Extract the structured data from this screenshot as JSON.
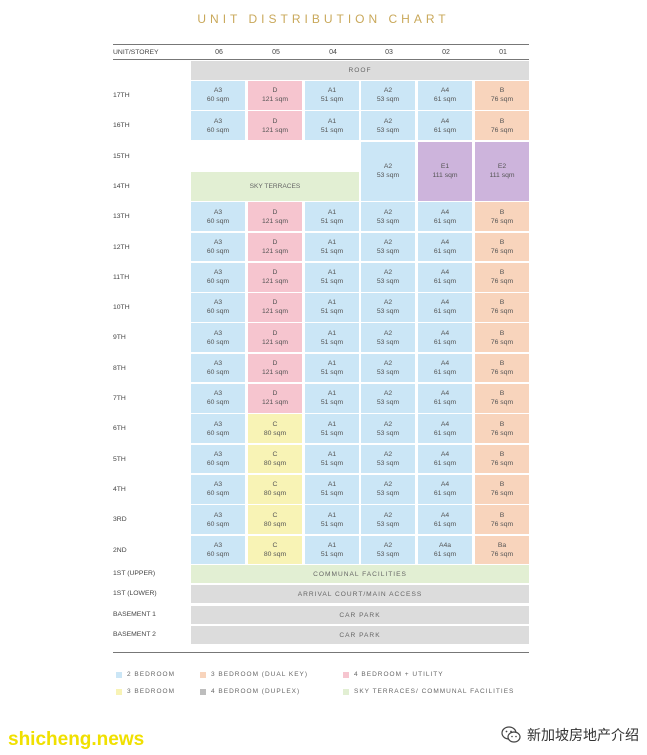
{
  "title": "UNIT DISTRIBUTION CHART",
  "header": {
    "corner": "UNIT/STOREY",
    "columns": [
      "06",
      "05",
      "04",
      "03",
      "02",
      "01"
    ]
  },
  "roof": "ROOF",
  "sky_terraces": "SKY TERRACES",
  "floors": [
    {
      "label": "17TH",
      "units": [
        [
          "A3",
          "60 sqm"
        ],
        [
          "D",
          "121 sqm"
        ],
        [
          "A1",
          "51 sqm"
        ],
        [
          "A2",
          "53 sqm"
        ],
        [
          "A4",
          "61 sqm"
        ],
        [
          "B",
          "76 sqm"
        ]
      ]
    },
    {
      "label": "16TH",
      "units": [
        [
          "A3",
          "60 sqm"
        ],
        [
          "D",
          "121 sqm"
        ],
        [
          "A1",
          "51 sqm"
        ],
        [
          "A2",
          "53 sqm"
        ],
        [
          "A4",
          "61 sqm"
        ],
        [
          "B",
          "76 sqm"
        ]
      ]
    },
    {
      "label": "15TH"
    },
    {
      "label": "14TH"
    },
    {
      "label": "13TH",
      "units": [
        [
          "A3",
          "60 sqm"
        ],
        [
          "D",
          "121 sqm"
        ],
        [
          "A1",
          "51 sqm"
        ],
        [
          "A2",
          "53 sqm"
        ],
        [
          "A4",
          "61 sqm"
        ],
        [
          "B",
          "76 sqm"
        ]
      ]
    },
    {
      "label": "12TH",
      "units": [
        [
          "A3",
          "60 sqm"
        ],
        [
          "D",
          "121 sqm"
        ],
        [
          "A1",
          "51 sqm"
        ],
        [
          "A2",
          "53 sqm"
        ],
        [
          "A4",
          "61 sqm"
        ],
        [
          "B",
          "76 sqm"
        ]
      ]
    },
    {
      "label": "11TH",
      "units": [
        [
          "A3",
          "60 sqm"
        ],
        [
          "D",
          "121 sqm"
        ],
        [
          "A1",
          "51 sqm"
        ],
        [
          "A2",
          "53 sqm"
        ],
        [
          "A4",
          "61 sqm"
        ],
        [
          "B",
          "76 sqm"
        ]
      ]
    },
    {
      "label": "10TH",
      "units": [
        [
          "A3",
          "60 sqm"
        ],
        [
          "D",
          "121 sqm"
        ],
        [
          "A1",
          "51 sqm"
        ],
        [
          "A2",
          "53 sqm"
        ],
        [
          "A4",
          "61 sqm"
        ],
        [
          "B",
          "76 sqm"
        ]
      ]
    },
    {
      "label": "9TH",
      "units": [
        [
          "A3",
          "60 sqm"
        ],
        [
          "D",
          "121 sqm"
        ],
        [
          "A1",
          "51 sqm"
        ],
        [
          "A2",
          "53 sqm"
        ],
        [
          "A4",
          "61 sqm"
        ],
        [
          "B",
          "76 sqm"
        ]
      ]
    },
    {
      "label": "8TH",
      "units": [
        [
          "A3",
          "60 sqm"
        ],
        [
          "D",
          "121 sqm"
        ],
        [
          "A1",
          "51 sqm"
        ],
        [
          "A2",
          "53 sqm"
        ],
        [
          "A4",
          "61 sqm"
        ],
        [
          "B",
          "76 sqm"
        ]
      ]
    },
    {
      "label": "7TH",
      "units": [
        [
          "A3",
          "60 sqm"
        ],
        [
          "D",
          "121 sqm"
        ],
        [
          "A1",
          "51 sqm"
        ],
        [
          "A2",
          "53 sqm"
        ],
        [
          "A4",
          "61 sqm"
        ],
        [
          "B",
          "76 sqm"
        ]
      ]
    },
    {
      "label": "6TH",
      "units": [
        [
          "A3",
          "60 sqm"
        ],
        [
          "C",
          "80 sqm"
        ],
        [
          "A1",
          "51 sqm"
        ],
        [
          "A2",
          "53 sqm"
        ],
        [
          "A4",
          "61 sqm"
        ],
        [
          "B",
          "76 sqm"
        ]
      ]
    },
    {
      "label": "5TH",
      "units": [
        [
          "A3",
          "60 sqm"
        ],
        [
          "C",
          "80 sqm"
        ],
        [
          "A1",
          "51 sqm"
        ],
        [
          "A2",
          "53 sqm"
        ],
        [
          "A4",
          "61 sqm"
        ],
        [
          "B",
          "76 sqm"
        ]
      ]
    },
    {
      "label": "4TH",
      "units": [
        [
          "A3",
          "60 sqm"
        ],
        [
          "C",
          "80 sqm"
        ],
        [
          "A1",
          "51 sqm"
        ],
        [
          "A2",
          "53 sqm"
        ],
        [
          "A4",
          "61 sqm"
        ],
        [
          "B",
          "76 sqm"
        ]
      ]
    },
    {
      "label": "3RD",
      "units": [
        [
          "A3",
          "60 sqm"
        ],
        [
          "C",
          "80 sqm"
        ],
        [
          "A1",
          "51 sqm"
        ],
        [
          "A2",
          "53 sqm"
        ],
        [
          "A4",
          "61 sqm"
        ],
        [
          "B",
          "76 sqm"
        ]
      ]
    },
    {
      "label": "2ND",
      "units": [
        [
          "A3",
          "60 sqm"
        ],
        [
          "C",
          "80 sqm"
        ],
        [
          "A1",
          "51 sqm"
        ],
        [
          "A2",
          "53 sqm"
        ],
        [
          "A4a",
          "61 sqm"
        ],
        [
          "Ba",
          "76 sqm"
        ]
      ]
    }
  ],
  "tall_units": [
    {
      "col": 3,
      "name": "A2",
      "size": "53 sqm",
      "color": "blue"
    },
    {
      "col": 4,
      "name": "E1",
      "size": "111 sqm",
      "color": "purple"
    },
    {
      "col": 5,
      "name": "E2",
      "size": "111 sqm",
      "color": "purple"
    }
  ],
  "lower_levels": [
    {
      "label": "1ST (UPPER)",
      "text": "COMMUNAL FACILITIES",
      "color": "green"
    },
    {
      "label": "1ST (LOWER)",
      "text": "ARRIVAL COURT/MAIN ACCESS",
      "color": "grey"
    },
    {
      "label": "BASEMENT 1",
      "text": "CAR PARK",
      "color": "grey"
    },
    {
      "label": "BASEMENT 2",
      "text": "CAR PARK",
      "color": "grey"
    }
  ],
  "legend": [
    {
      "text": "2 BEDROOM",
      "color": "blue"
    },
    {
      "text": "3 BEDROOM (DUAL KEY)",
      "color": "orange"
    },
    {
      "text": "4 BEDROOM + UTILITY",
      "color": "pink"
    },
    {
      "text": "3 BEDROOM",
      "color": "yellow"
    },
    {
      "text": "4 BEDROOM (DUPLEX)",
      "color": "grey"
    },
    {
      "text": "SKY TERRACES/ COMMUNAL FACILITIES",
      "color": "green"
    }
  ],
  "colors": {
    "blue": "#cbe6f6",
    "pink": "#f6c5cf",
    "yellow": "#f8f3b5",
    "orange": "#f8d4bc",
    "purple": "#cdb4dc",
    "green": "#e2efd3",
    "grey": "#dcdcdc",
    "legend_grey": "#bdbdbd"
  },
  "watermark": {
    "left": "shicheng.news",
    "right": "新加坡房地产介绍",
    "icon": "wechat-icon"
  }
}
